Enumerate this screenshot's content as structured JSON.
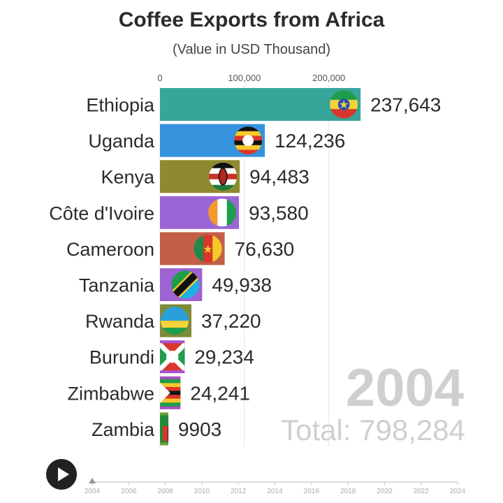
{
  "chart_data": {
    "type": "bar",
    "orientation": "horizontal",
    "title": "Coffee Exports from Africa",
    "subtitle": "(Value in USD Thousand)",
    "xlabel": "",
    "ylabel": "",
    "xlim": [
      0,
      240000
    ],
    "x_ticks": [
      0,
      100000,
      200000
    ],
    "x_tick_labels": [
      "0",
      "100,000",
      "200,000"
    ],
    "grid": true,
    "categories": [
      "Ethiopia",
      "Uganda",
      "Kenya",
      "Côte d'Ivoire",
      "Cameroon",
      "Tanzania",
      "Rwanda",
      "Burundi",
      "Zimbabwe",
      "Zambia"
    ],
    "values": [
      237643,
      124236,
      94483,
      93580,
      76630,
      49938,
      37220,
      29234,
      24241,
      9903
    ],
    "value_labels": [
      "237,643",
      "124,236",
      "94,483",
      "93,580",
      "76,630",
      "49,938",
      "37,220",
      "29,234",
      "24,241",
      "9903"
    ],
    "colors": [
      "#37a59a",
      "#3592dc",
      "#8e8a30",
      "#9a66d6",
      "#c25f46",
      "#9d63d2",
      "#7e8a3a",
      "#a653d0",
      "#a64fbf",
      "#6e9f3a"
    ],
    "flags": [
      "ethiopia-flag",
      "uganda-flag",
      "kenya-flag",
      "cote-divoire-flag",
      "cameroon-flag",
      "tanzania-flag",
      "rwanda-flag",
      "burundi-flag",
      "zimbabwe-flag",
      "zambia-flag"
    ],
    "year": "2004",
    "total_label": "Total: 798,284",
    "timeline": {
      "ticks": [
        "2004",
        "2006",
        "2008",
        "2010",
        "2012",
        "2014",
        "2016",
        "2018",
        "2020",
        "2022",
        "2024"
      ],
      "current": "2004"
    }
  },
  "controls": {
    "play_icon": "play-icon"
  }
}
